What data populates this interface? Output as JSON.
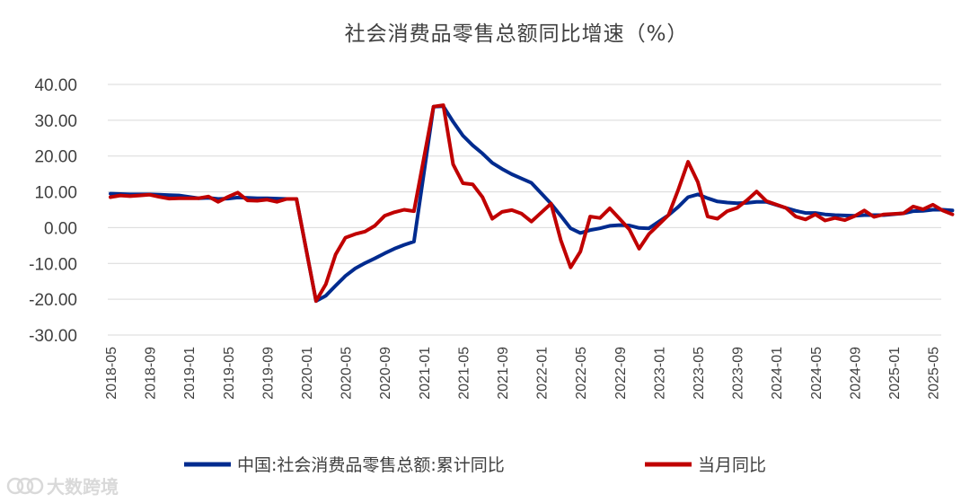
{
  "watermark": "大数跨境",
  "chart_data": {
    "type": "line",
    "title": "社会消费品零售总额同比增速（%）",
    "ylim": [
      -30,
      40
    ],
    "yticks": [
      "40.00",
      "30.00",
      "20.00",
      "10.00",
      "0.00",
      "-10.00",
      "-20.00",
      "-30.00"
    ],
    "xticks": [
      "2018-05",
      "2018-09",
      "2019-01",
      "2019-05",
      "2019-09",
      "2020-01",
      "2020-05",
      "2020-09",
      "2021-01",
      "2021-05",
      "2021-09",
      "2022-01",
      "2022-05",
      "2022-09",
      "2023-01",
      "2023-05",
      "2023-09",
      "2024-01",
      "2024-05",
      "2024-09",
      "2025-01",
      "2025-05"
    ],
    "grid": true,
    "legend_position": "bottom",
    "series": [
      {
        "name": "中国:社会消费品零售总额:累计同比",
        "color": "#002b8f",
        "points": [
          [
            "2018-05",
            9.5
          ],
          [
            "2018-06",
            9.4
          ],
          [
            "2018-07",
            9.3
          ],
          [
            "2018-08",
            9.3
          ],
          [
            "2018-09",
            9.3
          ],
          [
            "2018-10",
            9.2
          ],
          [
            "2018-11",
            9.1
          ],
          [
            "2018-12",
            9.0
          ],
          [
            "2019-02",
            8.2
          ],
          [
            "2019-03",
            8.3
          ],
          [
            "2019-04",
            8.0
          ],
          [
            "2019-05",
            8.1
          ],
          [
            "2019-06",
            8.4
          ],
          [
            "2019-07",
            8.3
          ],
          [
            "2019-08",
            8.2
          ],
          [
            "2019-09",
            8.2
          ],
          [
            "2019-10",
            8.1
          ],
          [
            "2019-11",
            8.0
          ],
          [
            "2019-12",
            8.0
          ],
          [
            "2020-02",
            -20.5
          ],
          [
            "2020-03",
            -19.0
          ],
          [
            "2020-04",
            -16.2
          ],
          [
            "2020-05",
            -13.5
          ],
          [
            "2020-06",
            -11.4
          ],
          [
            "2020-07",
            -9.9
          ],
          [
            "2020-08",
            -8.6
          ],
          [
            "2020-09",
            -7.2
          ],
          [
            "2020-10",
            -5.9
          ],
          [
            "2020-11",
            -4.8
          ],
          [
            "2020-12",
            -3.9
          ],
          [
            "2021-02",
            33.8
          ],
          [
            "2021-03",
            33.9
          ],
          [
            "2021-04",
            29.6
          ],
          [
            "2021-05",
            25.7
          ],
          [
            "2021-06",
            23.0
          ],
          [
            "2021-07",
            20.7
          ],
          [
            "2021-08",
            18.1
          ],
          [
            "2021-09",
            16.4
          ],
          [
            "2021-10",
            14.9
          ],
          [
            "2021-11",
            13.7
          ],
          [
            "2021-12",
            12.5
          ],
          [
            "2022-02",
            6.7
          ],
          [
            "2022-03",
            3.3
          ],
          [
            "2022-04",
            -0.2
          ],
          [
            "2022-05",
            -1.5
          ],
          [
            "2022-06",
            -0.7
          ],
          [
            "2022-07",
            -0.2
          ],
          [
            "2022-08",
            0.5
          ],
          [
            "2022-09",
            0.7
          ],
          [
            "2022-10",
            0.6
          ],
          [
            "2022-11",
            -0.1
          ],
          [
            "2022-12",
            -0.2
          ],
          [
            "2023-02",
            3.5
          ],
          [
            "2023-03",
            5.8
          ],
          [
            "2023-04",
            8.5
          ],
          [
            "2023-05",
            9.3
          ],
          [
            "2023-06",
            8.2
          ],
          [
            "2023-07",
            7.3
          ],
          [
            "2023-08",
            7.0
          ],
          [
            "2023-09",
            6.8
          ],
          [
            "2023-10",
            6.9
          ],
          [
            "2023-11",
            7.2
          ],
          [
            "2023-12",
            7.2
          ],
          [
            "2024-02",
            5.5
          ],
          [
            "2024-03",
            4.7
          ],
          [
            "2024-04",
            4.1
          ],
          [
            "2024-05",
            4.1
          ],
          [
            "2024-06",
            3.7
          ],
          [
            "2024-07",
            3.5
          ],
          [
            "2024-08",
            3.4
          ],
          [
            "2024-09",
            3.3
          ],
          [
            "2024-10",
            3.5
          ],
          [
            "2024-11",
            3.5
          ],
          [
            "2024-12",
            3.5
          ],
          [
            "2025-02",
            4.0
          ],
          [
            "2025-03",
            4.6
          ],
          [
            "2025-04",
            4.7
          ],
          [
            "2025-05",
            5.0
          ],
          [
            "2025-06",
            5.0
          ],
          [
            "2025-07",
            4.8
          ]
        ]
      },
      {
        "name": "当月同比",
        "color": "#c00000",
        "points": [
          [
            "2018-05",
            8.5
          ],
          [
            "2018-06",
            9.0
          ],
          [
            "2018-07",
            8.8
          ],
          [
            "2018-08",
            9.0
          ],
          [
            "2018-09",
            9.2
          ],
          [
            "2018-10",
            8.6
          ],
          [
            "2018-11",
            8.1
          ],
          [
            "2018-12",
            8.2
          ],
          [
            "2019-02",
            8.2
          ],
          [
            "2019-03",
            8.7
          ],
          [
            "2019-04",
            7.2
          ],
          [
            "2019-05",
            8.6
          ],
          [
            "2019-06",
            9.8
          ],
          [
            "2019-07",
            7.6
          ],
          [
            "2019-08",
            7.5
          ],
          [
            "2019-09",
            7.8
          ],
          [
            "2019-10",
            7.2
          ],
          [
            "2019-11",
            8.0
          ],
          [
            "2019-12",
            8.0
          ],
          [
            "2020-02",
            -20.5
          ],
          [
            "2020-03",
            -15.8
          ],
          [
            "2020-04",
            -7.5
          ],
          [
            "2020-05",
            -2.8
          ],
          [
            "2020-06",
            -1.8
          ],
          [
            "2020-07",
            -1.1
          ],
          [
            "2020-08",
            0.5
          ],
          [
            "2020-09",
            3.3
          ],
          [
            "2020-10",
            4.3
          ],
          [
            "2020-11",
            5.0
          ],
          [
            "2020-12",
            4.6
          ],
          [
            "2021-02",
            33.8
          ],
          [
            "2021-03",
            34.2
          ],
          [
            "2021-04",
            17.7
          ],
          [
            "2021-05",
            12.4
          ],
          [
            "2021-06",
            12.1
          ],
          [
            "2021-07",
            8.5
          ],
          [
            "2021-08",
            2.5
          ],
          [
            "2021-09",
            4.4
          ],
          [
            "2021-10",
            4.9
          ],
          [
            "2021-11",
            3.9
          ],
          [
            "2021-12",
            1.7
          ],
          [
            "2022-02",
            6.7
          ],
          [
            "2022-03",
            -3.5
          ],
          [
            "2022-04",
            -11.1
          ],
          [
            "2022-05",
            -6.7
          ],
          [
            "2022-06",
            3.1
          ],
          [
            "2022-07",
            2.7
          ],
          [
            "2022-08",
            5.4
          ],
          [
            "2022-09",
            2.5
          ],
          [
            "2022-10",
            -0.5
          ],
          [
            "2022-11",
            -5.9
          ],
          [
            "2022-12",
            -1.8
          ],
          [
            "2023-02",
            3.5
          ],
          [
            "2023-03",
            10.6
          ],
          [
            "2023-04",
            18.4
          ],
          [
            "2023-05",
            12.7
          ],
          [
            "2023-06",
            3.1
          ],
          [
            "2023-07",
            2.5
          ],
          [
            "2023-08",
            4.6
          ],
          [
            "2023-09",
            5.5
          ],
          [
            "2023-10",
            7.6
          ],
          [
            "2023-11",
            10.1
          ],
          [
            "2023-12",
            7.4
          ],
          [
            "2024-02",
            5.5
          ],
          [
            "2024-03",
            3.1
          ],
          [
            "2024-04",
            2.3
          ],
          [
            "2024-05",
            3.7
          ],
          [
            "2024-06",
            2.0
          ],
          [
            "2024-07",
            2.7
          ],
          [
            "2024-08",
            2.1
          ],
          [
            "2024-09",
            3.2
          ],
          [
            "2024-10",
            4.8
          ],
          [
            "2024-11",
            3.0
          ],
          [
            "2024-12",
            3.7
          ],
          [
            "2025-02",
            4.0
          ],
          [
            "2025-03",
            5.9
          ],
          [
            "2025-04",
            5.1
          ],
          [
            "2025-05",
            6.4
          ],
          [
            "2025-06",
            4.8
          ],
          [
            "2025-07",
            3.7
          ]
        ]
      }
    ]
  }
}
